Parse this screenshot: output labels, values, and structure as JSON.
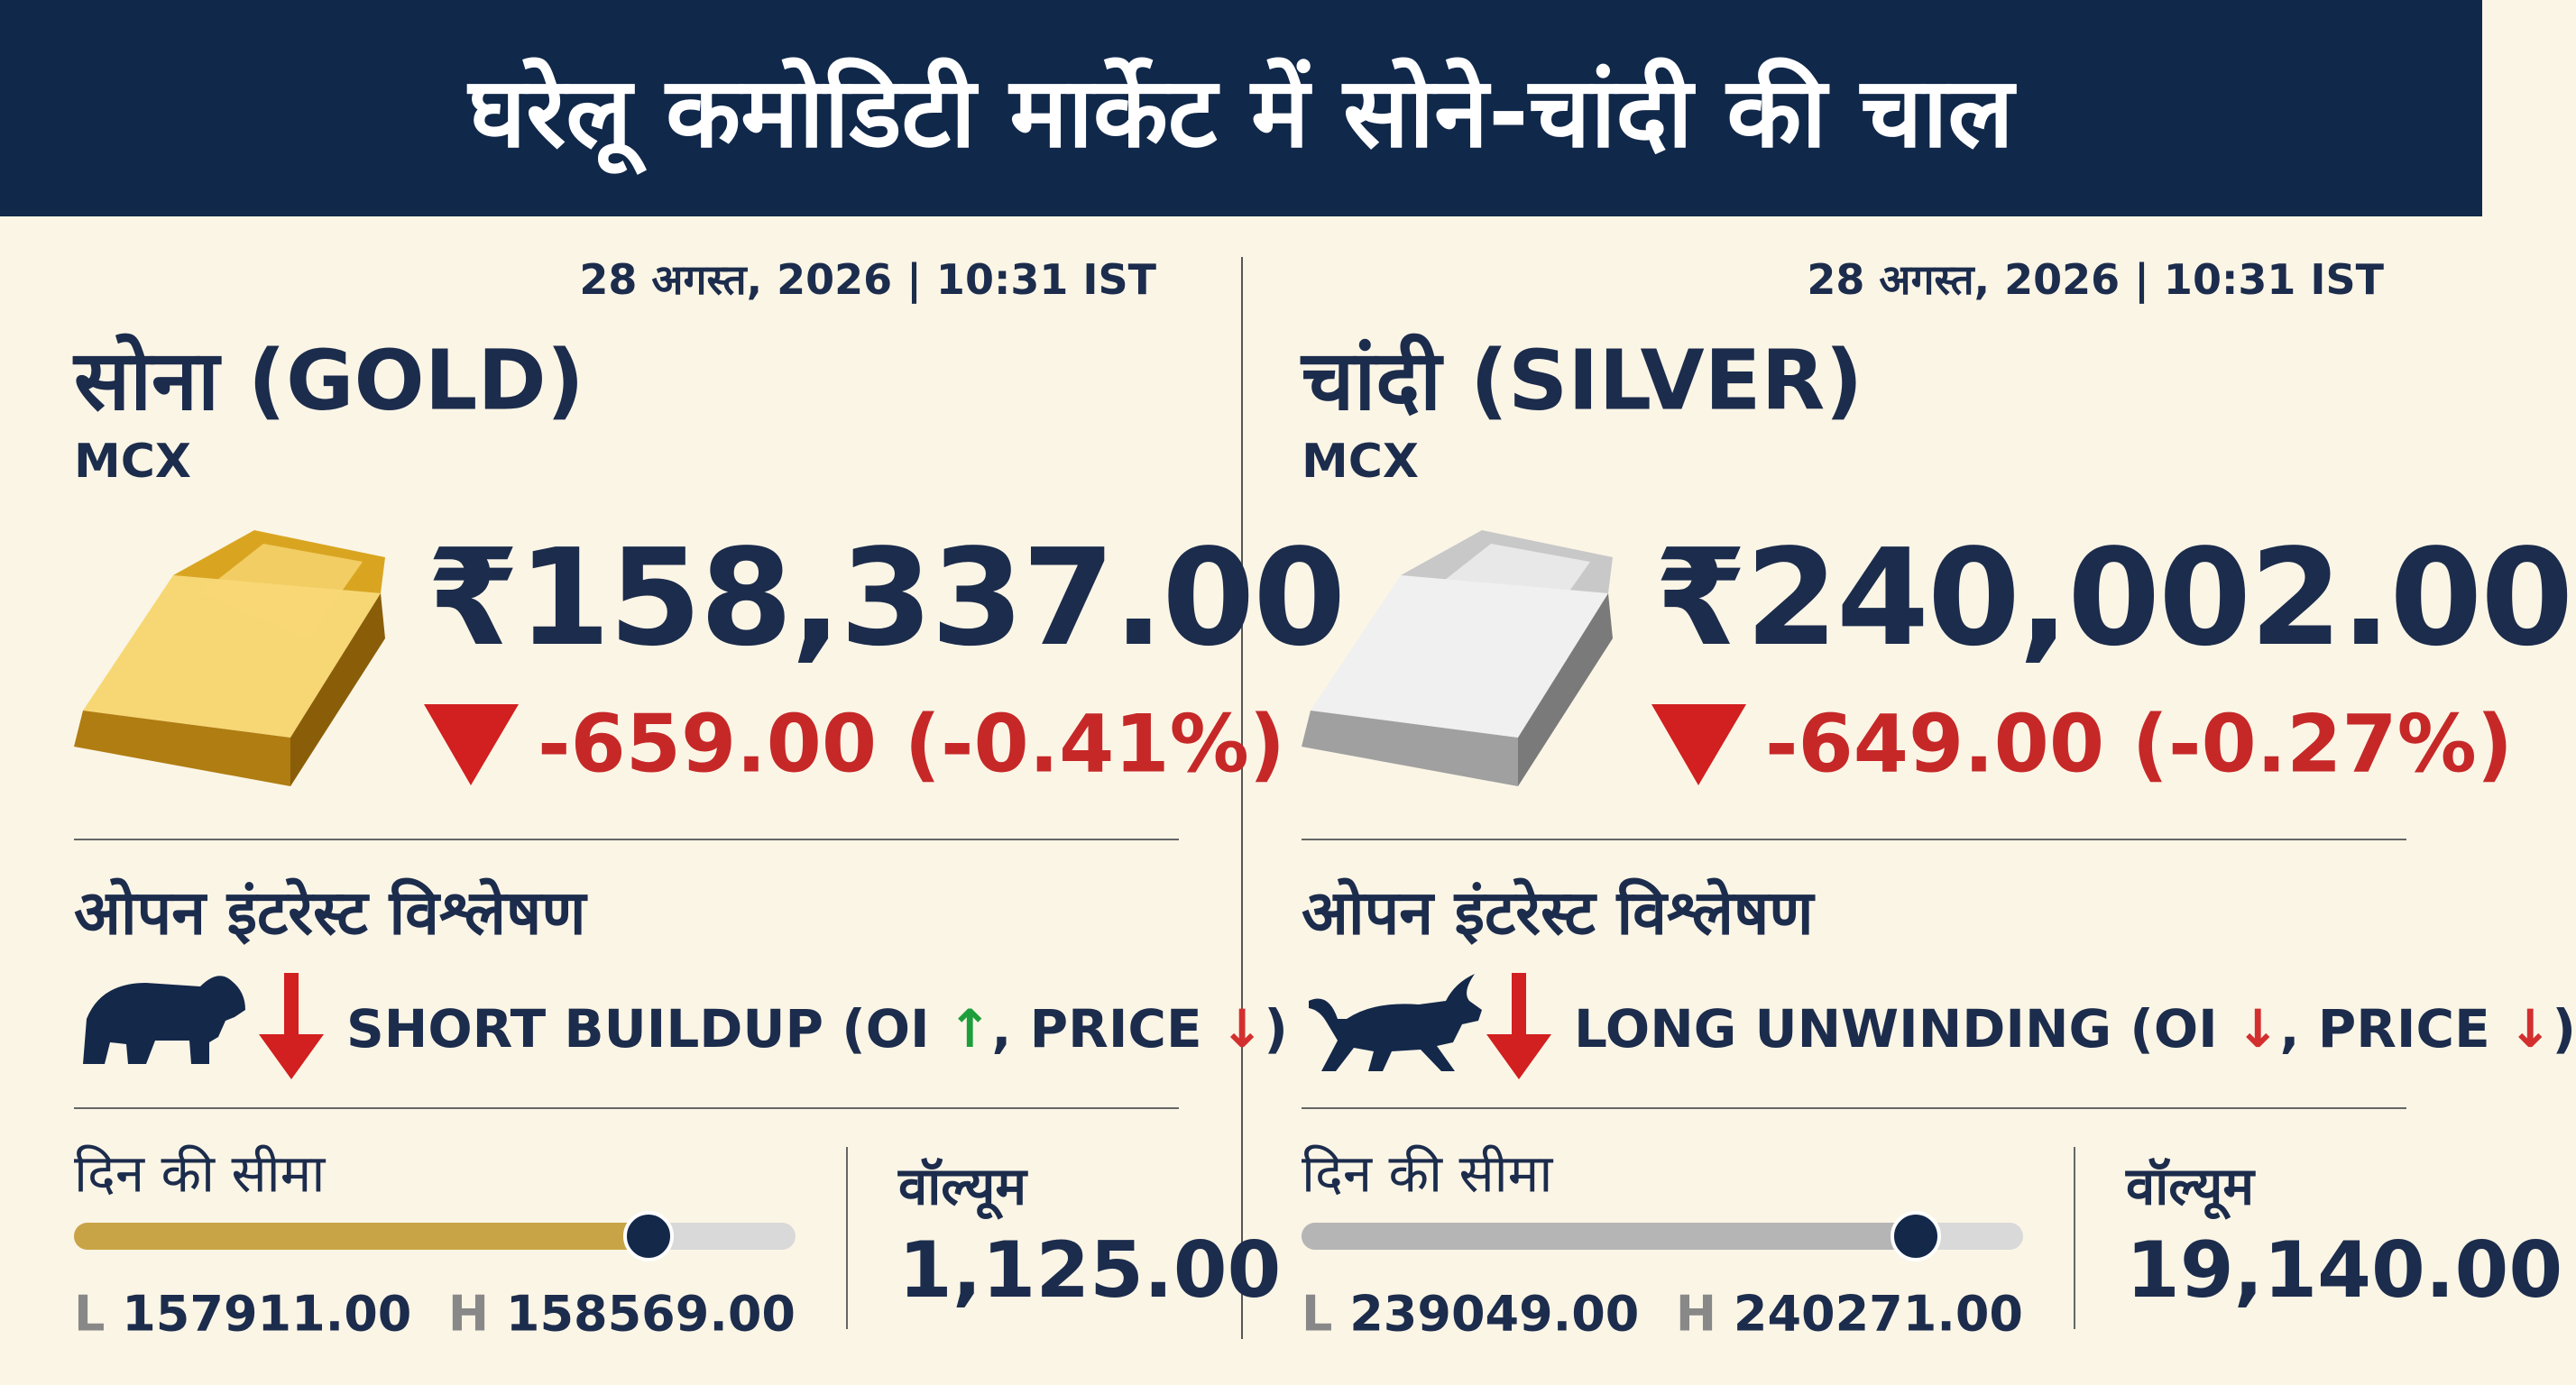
{
  "header": {
    "title": "घरेलू कमोडिटी मार्केट में सोने-चांदी की चाल"
  },
  "panels": [
    {
      "timestamp": "28 अगस्त, 2026 | 10:31 IST",
      "name": "सोना (GOLD)",
      "exchange": "MCX",
      "price": "₹158,337.00",
      "change": "-659.00 (-0.41%)",
      "oi_title": "ओपन इंटरेस्ट विश्लेषण",
      "oi_signal": [
        {
          "text": "SHORT BUILDUP (OI "
        },
        {
          "text": "↑",
          "color": "#1e9e3a"
        },
        {
          "text": ", PRICE "
        },
        {
          "text": "↓",
          "color": "#d32f2f"
        },
        {
          "text": ")"
        }
      ],
      "range_label": "दिन की सीमा",
      "low": {
        "label": "L",
        "value": "157911.00"
      },
      "high": {
        "label": "H",
        "value": "158569.00"
      },
      "volume_label": "वॉल्यूम",
      "volume": "1,125.00"
    },
    {
      "timestamp": "28 अगस्त, 2026 | 10:31 IST",
      "name": "चांदी (SILVER)",
      "exchange": "MCX",
      "price": "₹240,002.00",
      "change": "-649.00 (-0.27%)",
      "oi_title": "ओपन इंटरेस्ट विश्लेषण",
      "oi_signal": [
        {
          "text": "LONG UNWINDING (OI "
        },
        {
          "text": "↓",
          "color": "#d32f2f"
        },
        {
          "text": ", PRICE "
        },
        {
          "text": "↓",
          "color": "#d32f2f"
        },
        {
          "text": ")"
        }
      ],
      "range_label": "दिन की सीमा",
      "low": {
        "label": "L",
        "value": "239049.00"
      },
      "high": {
        "label": "H",
        "value": "240271.00"
      },
      "volume_label": "वॉल्यूम",
      "volume": "19,140.00"
    }
  ]
}
